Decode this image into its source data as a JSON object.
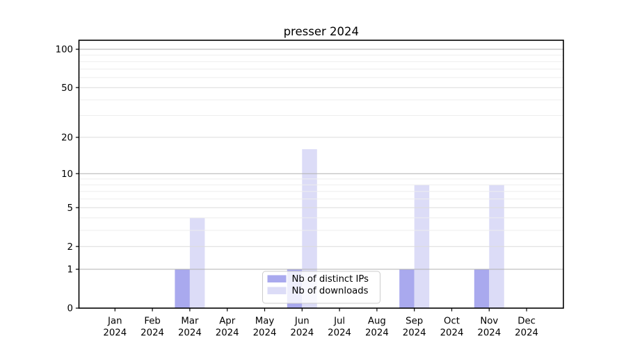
{
  "chart_data": {
    "type": "bar",
    "title": "presser 2024",
    "x_categories": [
      {
        "month": "Jan",
        "year": "2024"
      },
      {
        "month": "Feb",
        "year": "2024"
      },
      {
        "month": "Mar",
        "year": "2024"
      },
      {
        "month": "Apr",
        "year": "2024"
      },
      {
        "month": "May",
        "year": "2024"
      },
      {
        "month": "Jun",
        "year": "2024"
      },
      {
        "month": "Jul",
        "year": "2024"
      },
      {
        "month": "Aug",
        "year": "2024"
      },
      {
        "month": "Sep",
        "year": "2024"
      },
      {
        "month": "Oct",
        "year": "2024"
      },
      {
        "month": "Nov",
        "year": "2024"
      },
      {
        "month": "Dec",
        "year": "2024"
      }
    ],
    "series": [
      {
        "name": "Nb of distinct IPs",
        "color": "#a9a9ee",
        "values": [
          0,
          0,
          1,
          0,
          0,
          1,
          0,
          0,
          1,
          0,
          1,
          0
        ]
      },
      {
        "name": "Nb of downloads",
        "color": "#dcdcf7",
        "values": [
          0,
          0,
          4,
          0,
          0,
          16,
          0,
          0,
          8,
          0,
          8,
          0
        ]
      }
    ],
    "y_axis": {
      "scale": "log1p",
      "ticks": [
        0,
        1,
        2,
        5,
        10,
        20,
        50,
        100
      ],
      "minor_gridlines": [
        3,
        4,
        6,
        7,
        8,
        9,
        30,
        40,
        60,
        70,
        80,
        90
      ],
      "range": [
        0,
        117
      ]
    },
    "grid": true,
    "legend": {
      "position": "inside-bottom-center",
      "entries": [
        "Nb of distinct IPs",
        "Nb of downloads"
      ]
    }
  },
  "colors": {
    "background": "#ffffff",
    "axis": "#000000",
    "major_grid": "#b0b0b0",
    "mid_grid": "#dbdbdb",
    "minor_grid": "#eeeeee",
    "legend_border": "#cccccc",
    "legend_fill": "rgba(255,255,255,0.8)"
  }
}
